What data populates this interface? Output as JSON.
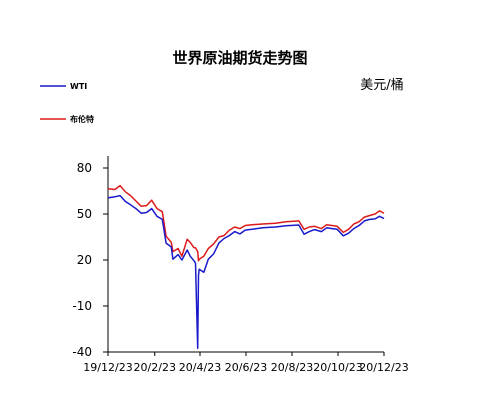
{
  "chart_data": {
    "type": "line",
    "title": "世界原油期货走势图",
    "unit": "美元/桶",
    "ylim": [
      -40,
      80
    ],
    "yticks": [
      80,
      50,
      20,
      -10,
      -40
    ],
    "xticks": [
      "19/12/23",
      "20/2/23",
      "20/4/23",
      "20/6/23",
      "20/8/23",
      "20/10/23",
      "20/12/23"
    ],
    "xrange": [
      "19/12/23",
      "20/12/23"
    ],
    "grid": false,
    "legend_placement": "top-left",
    "series": [
      {
        "name": "WTI",
        "color": "#1a1acc",
        "points": [
          [
            "2019-12-23",
            60.5
          ],
          [
            "2020-01-01",
            61.2
          ],
          [
            "2020-01-08",
            62.0
          ],
          [
            "2020-01-15",
            58.2
          ],
          [
            "2020-01-22",
            56.0
          ],
          [
            "2020-01-29",
            53.5
          ],
          [
            "2020-02-05",
            50.5
          ],
          [
            "2020-02-12",
            51.0
          ],
          [
            "2020-02-19",
            53.5
          ],
          [
            "2020-02-26",
            48.5
          ],
          [
            "2020-03-04",
            46.5
          ],
          [
            "2020-03-09",
            31.0
          ],
          [
            "2020-03-16",
            28.5
          ],
          [
            "2020-03-18",
            20.5
          ],
          [
            "2020-03-25",
            23.5
          ],
          [
            "2020-03-30",
            20.0
          ],
          [
            "2020-04-06",
            26.5
          ],
          [
            "2020-04-10",
            22.5
          ],
          [
            "2020-04-15",
            19.5
          ],
          [
            "2020-04-17",
            18.0
          ],
          [
            "2020-04-20",
            -37.6
          ],
          [
            "2020-04-21",
            10.0
          ],
          [
            "2020-04-22",
            14.0
          ],
          [
            "2020-04-28",
            12.0
          ],
          [
            "2020-05-04",
            20.5
          ],
          [
            "2020-05-11",
            24.0
          ],
          [
            "2020-05-18",
            31.0
          ],
          [
            "2020-05-25",
            34.0
          ],
          [
            "2020-06-01",
            36.0
          ],
          [
            "2020-06-08",
            38.5
          ],
          [
            "2020-06-15",
            37.0
          ],
          [
            "2020-06-22",
            39.5
          ],
          [
            "2020-07-01",
            40.0
          ],
          [
            "2020-07-15",
            41.0
          ],
          [
            "2020-08-01",
            41.5
          ],
          [
            "2020-08-15",
            42.3
          ],
          [
            "2020-09-01",
            42.8
          ],
          [
            "2020-09-08",
            36.8
          ],
          [
            "2020-09-15",
            38.5
          ],
          [
            "2020-09-22",
            39.8
          ],
          [
            "2020-10-01",
            38.5
          ],
          [
            "2020-10-08",
            41.0
          ],
          [
            "2020-10-15",
            40.5
          ],
          [
            "2020-10-22",
            40.0
          ],
          [
            "2020-10-30",
            35.8
          ],
          [
            "2020-11-06",
            37.5
          ],
          [
            "2020-11-13",
            40.5
          ],
          [
            "2020-11-20",
            42.5
          ],
          [
            "2020-11-27",
            45.5
          ],
          [
            "2020-12-04",
            46.5
          ],
          [
            "2020-12-11",
            46.8
          ],
          [
            "2020-12-17",
            48.5
          ],
          [
            "2020-12-23",
            47.0
          ]
        ]
      },
      {
        "name": "布伦特",
        "color": "#dd1a1a",
        "points": [
          [
            "2019-12-23",
            66.5
          ],
          [
            "2020-01-01",
            66.0
          ],
          [
            "2020-01-08",
            68.5
          ],
          [
            "2020-01-15",
            64.5
          ],
          [
            "2020-01-22",
            62.0
          ],
          [
            "2020-01-29",
            58.5
          ],
          [
            "2020-02-05",
            55.0
          ],
          [
            "2020-02-12",
            55.5
          ],
          [
            "2020-02-19",
            59.0
          ],
          [
            "2020-02-26",
            53.5
          ],
          [
            "2020-03-04",
            51.5
          ],
          [
            "2020-03-09",
            35.5
          ],
          [
            "2020-03-16",
            31.5
          ],
          [
            "2020-03-18",
            25.5
          ],
          [
            "2020-03-25",
            27.5
          ],
          [
            "2020-03-30",
            22.5
          ],
          [
            "2020-04-06",
            33.5
          ],
          [
            "2020-04-10",
            31.5
          ],
          [
            "2020-04-15",
            28.0
          ],
          [
            "2020-04-17",
            28.0
          ],
          [
            "2020-04-20",
            25.5
          ],
          [
            "2020-04-21",
            19.5
          ],
          [
            "2020-04-22",
            20.5
          ],
          [
            "2020-04-28",
            22.5
          ],
          [
            "2020-05-04",
            27.5
          ],
          [
            "2020-05-11",
            30.5
          ],
          [
            "2020-05-18",
            35.0
          ],
          [
            "2020-05-25",
            36.0
          ],
          [
            "2020-06-01",
            39.5
          ],
          [
            "2020-06-08",
            41.5
          ],
          [
            "2020-06-15",
            40.5
          ],
          [
            "2020-06-22",
            42.5
          ],
          [
            "2020-07-01",
            43.0
          ],
          [
            "2020-07-15",
            43.5
          ],
          [
            "2020-08-01",
            44.0
          ],
          [
            "2020-08-15",
            45.0
          ],
          [
            "2020-09-01",
            45.5
          ],
          [
            "2020-09-08",
            40.0
          ],
          [
            "2020-09-15",
            41.5
          ],
          [
            "2020-09-22",
            42.0
          ],
          [
            "2020-10-01",
            40.5
          ],
          [
            "2020-10-08",
            43.0
          ],
          [
            "2020-10-15",
            42.5
          ],
          [
            "2020-10-22",
            42.0
          ],
          [
            "2020-10-30",
            38.0
          ],
          [
            "2020-11-06",
            40.0
          ],
          [
            "2020-11-13",
            43.5
          ],
          [
            "2020-11-20",
            45.0
          ],
          [
            "2020-11-27",
            48.0
          ],
          [
            "2020-12-04",
            49.0
          ],
          [
            "2020-12-11",
            50.0
          ],
          [
            "2020-12-17",
            52.0
          ],
          [
            "2020-12-23",
            50.5
          ]
        ]
      }
    ]
  }
}
